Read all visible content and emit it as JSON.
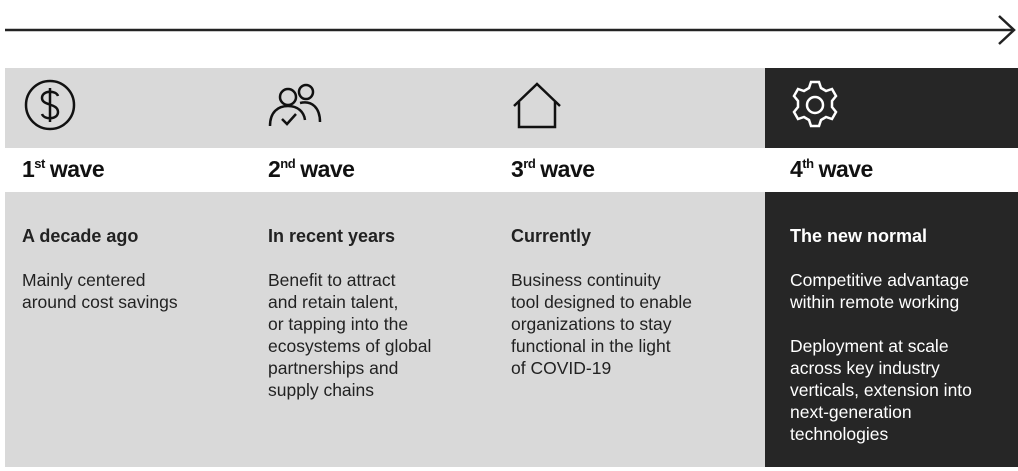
{
  "waves": [
    {
      "number": "1",
      "suffix": "st",
      "word": "wave",
      "period": "A decade ago",
      "description": [
        [
          "Mainly centered",
          "around cost savings"
        ]
      ]
    },
    {
      "number": "2",
      "suffix": "nd",
      "word": "wave",
      "period": "In recent years",
      "description": [
        [
          "Benefit to attract",
          "and retain talent,",
          "or tapping into the",
          "ecosystems of global",
          "partnerships and",
          "supply chains"
        ]
      ]
    },
    {
      "number": "3",
      "suffix": "rd",
      "word": "wave",
      "period": "Currently",
      "description": [
        [
          "Business continuity",
          "tool designed to enable",
          "organizations to stay",
          "functional in the light",
          "of COVID-19"
        ]
      ]
    },
    {
      "number": "4",
      "suffix": "th",
      "word": "wave",
      "period": "The new normal",
      "description": [
        [
          "Competitive advantage",
          "within remote working"
        ],
        [
          "Deployment at scale",
          "across key industry",
          "verticals, extension into",
          "next-generation",
          "technologies"
        ]
      ]
    }
  ]
}
